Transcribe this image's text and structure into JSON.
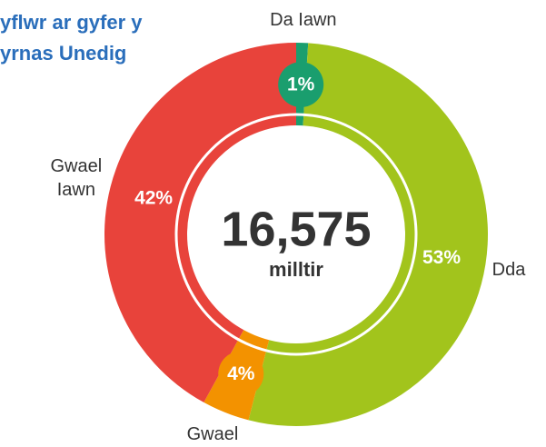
{
  "chart_data": {
    "type": "donut",
    "title": [
      "yflwr ar gyfer y",
      "yrnas Unedig"
    ],
    "center_label": "16,575",
    "center_unit": "milltir",
    "categories": [
      "Da Iawn",
      "Dda",
      "Gwael",
      "Gwael Iawn"
    ],
    "values": [
      1,
      53,
      4,
      42
    ],
    "value_labels": [
      "1%",
      "53%",
      "4%",
      "42%"
    ],
    "colors": [
      "#1a9e6e",
      "#a2c41c",
      "#f39200",
      "#e8433b"
    ]
  }
}
